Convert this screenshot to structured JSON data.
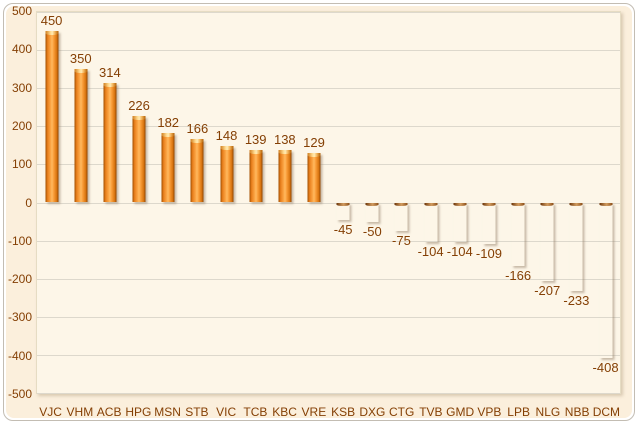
{
  "chart_data": {
    "type": "bar",
    "title": "",
    "categories": [
      "VJC",
      "VHM",
      "ACB",
      "HPG",
      "MSN",
      "STB",
      "VIC",
      "TCB",
      "KBC",
      "VRE",
      "KSB",
      "DXG",
      "CTG",
      "TVB",
      "GMD",
      "VPB",
      "LPB",
      "NLG",
      "NBB",
      "DCM"
    ],
    "values": [
      450,
      350,
      314,
      226,
      182,
      166,
      148,
      139,
      138,
      129,
      -45,
      -50,
      -75,
      -104,
      -104,
      -109,
      -166,
      -207,
      -233,
      -408
    ],
    "data_labels": [
      "450",
      "350",
      "314",
      "226",
      "182",
      "166",
      "148",
      "139",
      "138",
      "129",
      "-45",
      "-50",
      "-75",
      "-104",
      "-104",
      "-109",
      "-166",
      "-207",
      "-233",
      "-408"
    ],
    "xlabel": "",
    "ylabel": "",
    "ylim": [
      -500,
      500
    ],
    "y_ticks": [
      500,
      400,
      300,
      200,
      100,
      0,
      -100,
      -200,
      -300,
      -400,
      -500
    ],
    "y_tick_labels": [
      "500",
      "400",
      "300",
      "200",
      "100",
      "0",
      "-100",
      "-200",
      "-300",
      "-400",
      "-500"
    ],
    "grid": "horizontal-major",
    "legend": "none",
    "data_label_position": "outside-end"
  },
  "style": {
    "background_color": "#FBEFDC",
    "plot_background_color": "#FDF6E8",
    "gridline_color": "#DDD8CC",
    "plot_border_color": "#E6DCC3",
    "frame_border_color": "#C3BDB3",
    "text_color": "#843F04",
    "positive_bar_color": "#FBA647",
    "positive_bar_edge_color": "#A04E00",
    "negative_bar_color": "#9D5D2C",
    "negative_bar_edge_color": "#572903"
  }
}
